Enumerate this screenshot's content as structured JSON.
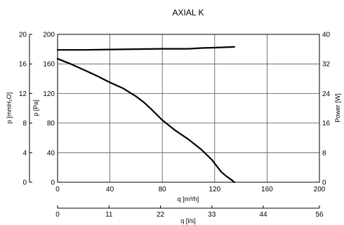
{
  "chart_data": {
    "type": "line",
    "title": "AXIAL K",
    "x_primary": {
      "label": "q [m³/h]",
      "range": [
        0,
        200
      ],
      "ticks": [
        "0",
        "40",
        "80",
        "120",
        "160",
        "200"
      ]
    },
    "x_secondary": {
      "label": "q [l/s]",
      "range": [
        0,
        56
      ],
      "ticks": [
        "0",
        "11",
        "22",
        "33",
        "44",
        "56"
      ]
    },
    "y_left_outer": {
      "label": "p [mmH₂O]",
      "range": [
        0,
        20
      ],
      "ticks": [
        "0",
        "4",
        "8",
        "12",
        "16",
        "20"
      ]
    },
    "y_left_inner": {
      "label": "p [Pa]",
      "range": [
        0,
        200
      ],
      "ticks": [
        "0",
        "40",
        "80",
        "120",
        "160",
        "200"
      ]
    },
    "y_right": {
      "label": "Power [W]",
      "range": [
        0,
        40
      ],
      "ticks": [
        "0",
        "8",
        "16",
        "24",
        "32",
        "40"
      ]
    },
    "grid": true,
    "series": [
      {
        "axis": "pressure",
        "color": "#000000",
        "x": [
          0,
          10,
          20,
          30,
          40,
          50,
          60,
          66,
          72,
          80,
          90,
          100,
          110,
          118,
          125,
          129,
          133,
          135
        ],
        "y": [
          167,
          160,
          152,
          144,
          135,
          127,
          116,
          108,
          98,
          84,
          70,
          58,
          44,
          30,
          14,
          8,
          3,
          0
        ]
      },
      {
        "axis": "power",
        "color": "#000000",
        "x": [
          0,
          20,
          40,
          60,
          80,
          100,
          110,
          120,
          135
        ],
        "y": [
          35.8,
          35.8,
          35.9,
          36.0,
          36.1,
          36.1,
          36.3,
          36.4,
          36.6
        ]
      }
    ]
  }
}
